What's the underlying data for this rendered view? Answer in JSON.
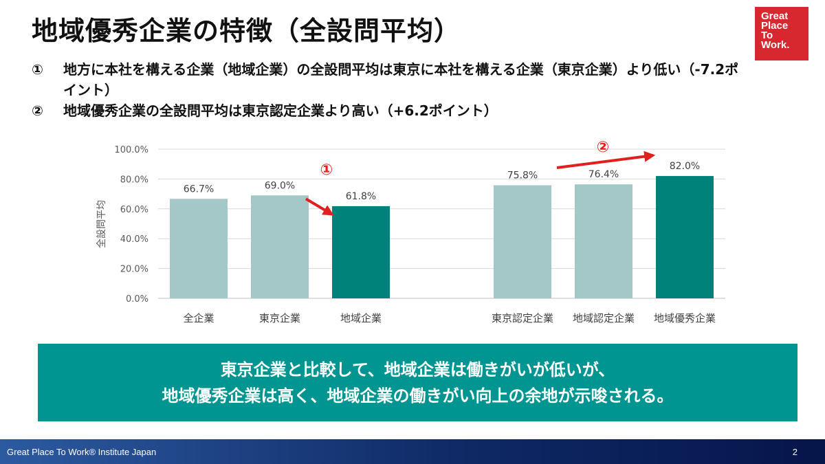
{
  "title": "地域優秀企業の特徴（全設問平均）",
  "logo": {
    "lines": [
      "Great",
      "Place",
      "To",
      "Work."
    ]
  },
  "bullets": [
    {
      "num": "①",
      "text": "地方に本社を構える企業（地域企業）の全設問平均は東京に本社を構える企業（東京企業）より低い（-7.2ポイント）"
    },
    {
      "num": "②",
      "text": "地域優秀企業の全設問平均は東京認定企業より高い（+6.2ポイント）"
    }
  ],
  "chart_data": {
    "type": "bar",
    "ylabel": "全設問平均",
    "ylim": [
      0,
      100
    ],
    "yticks": [
      "0.0%",
      "20.0%",
      "40.0%",
      "60.0%",
      "80.0%",
      "100.0%"
    ],
    "grid": true,
    "categories": [
      "全企業",
      "東京企業",
      "地域企業",
      "東京認定企業",
      "地域認定企業",
      "地域優秀企業"
    ],
    "values": [
      66.7,
      69.0,
      61.8,
      75.8,
      76.4,
      82.0
    ],
    "data_labels": [
      "66.7%",
      "69.0%",
      "61.8%",
      "75.8%",
      "76.4%",
      "82.0%"
    ],
    "bar_colors": [
      "#a3c8c7",
      "#a3c8c7",
      "#00817a",
      "#a3c8c7",
      "#a3c8c7",
      "#00817a"
    ],
    "annotations": [
      {
        "label": "①",
        "from_category": "東京企業",
        "to_category": "地域企業"
      },
      {
        "label": "②",
        "from_category": "東京認定企業",
        "to_category": "地域優秀企業"
      }
    ],
    "annotation_color": "#e0201c"
  },
  "summary": {
    "line1": "東京企業と比較して、地域企業は働きがいが低いが、",
    "line2": "地域優秀企業は高く、地域企業の働きがい向上の余地が示唆される。"
  },
  "footer": {
    "org": "Great Place To Work® Institute Japan",
    "page": "2"
  }
}
